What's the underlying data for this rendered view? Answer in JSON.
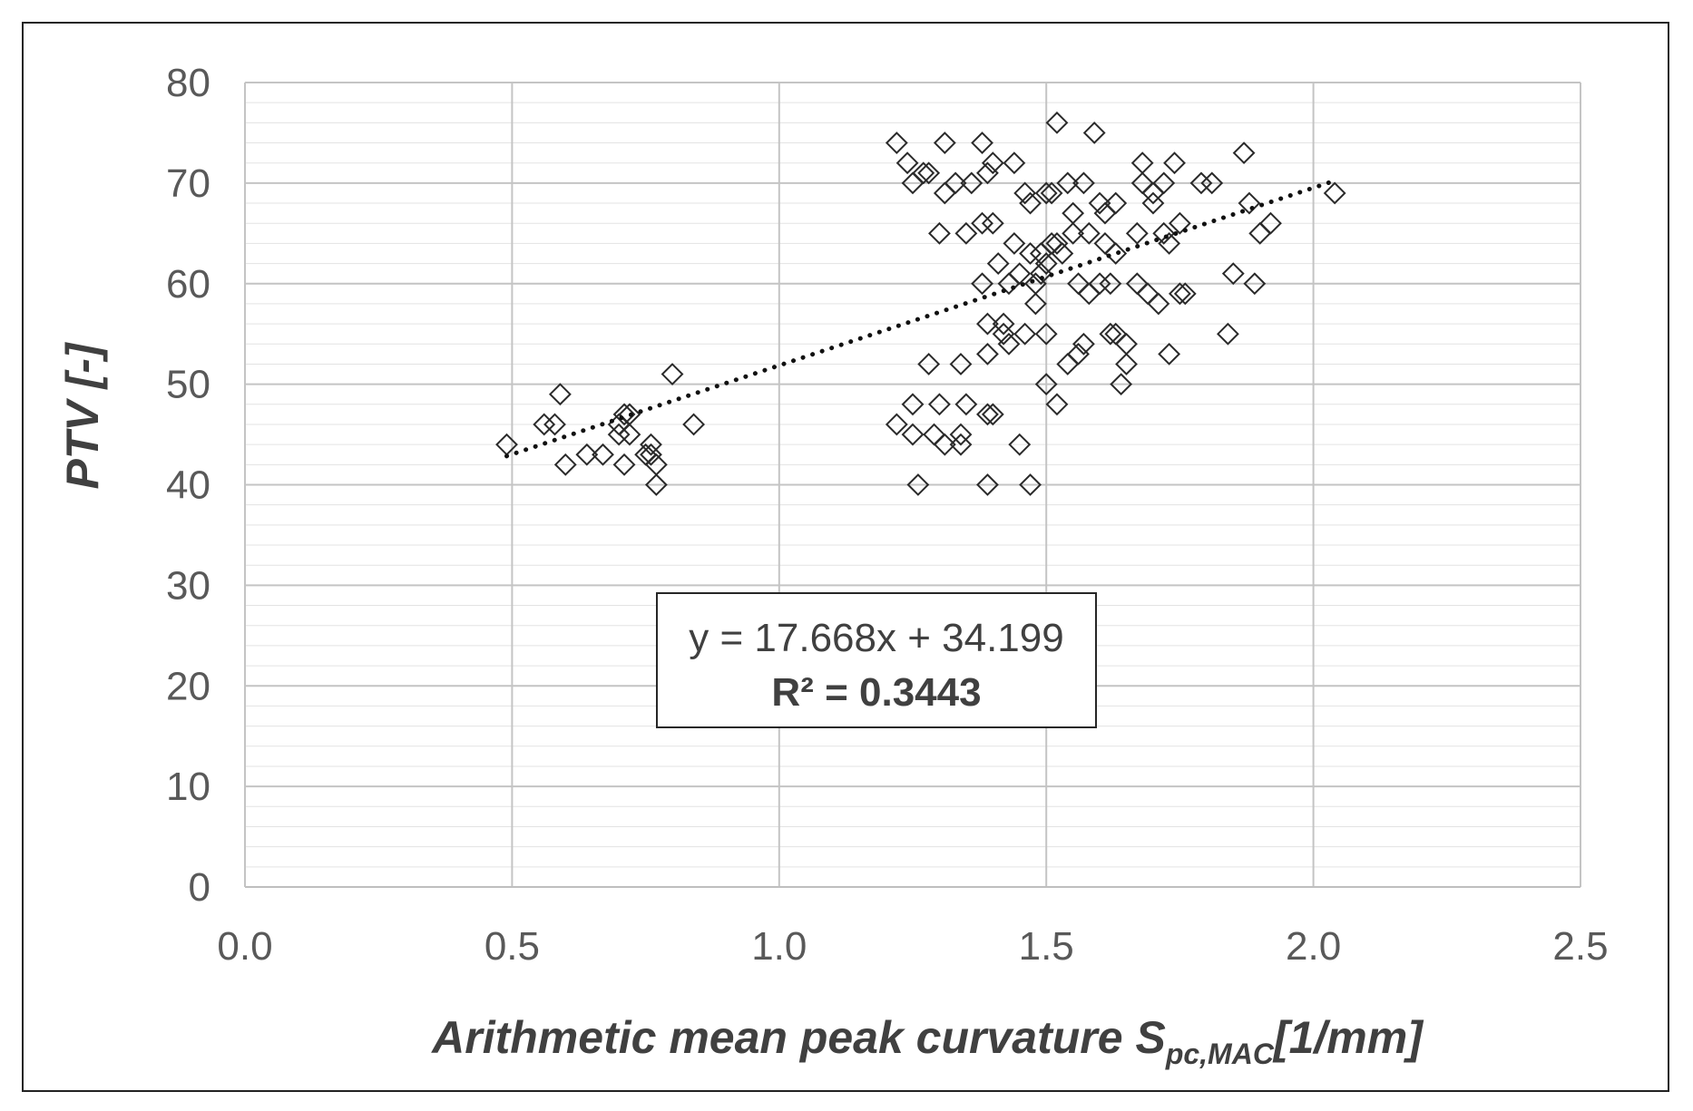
{
  "chart_data": {
    "type": "scatter",
    "xlabel": "Arithmetic mean peak curvature S",
    "xlabel_subscript": "pc,MAC",
    "xlabel_unit": "[1/mm]",
    "ylabel": "PTV [-]",
    "xlim": [
      0.0,
      2.5
    ],
    "ylim": [
      0,
      80
    ],
    "x_ticks": [
      "0.0",
      "0.5",
      "1.0",
      "1.5",
      "2.0",
      "2.5"
    ],
    "y_ticks": [
      "0",
      "10",
      "20",
      "30",
      "40",
      "50",
      "60",
      "70",
      "80"
    ],
    "grid": "major and minor",
    "marker": "hollow-diamond",
    "trendline": {
      "type": "linear",
      "slope": 17.668,
      "intercept": 34.199,
      "x_range": [
        0.49,
        2.03
      ],
      "style": "dotted",
      "equation_label": "y = 17.668x + 34.199",
      "r2_label": "R² = 0.3443"
    },
    "series": [
      {
        "points": [
          [
            0.49,
            44
          ],
          [
            0.56,
            46
          ],
          [
            0.58,
            46
          ],
          [
            0.59,
            49
          ],
          [
            0.6,
            42
          ],
          [
            0.64,
            43
          ],
          [
            0.67,
            43
          ],
          [
            0.7,
            45
          ],
          [
            0.7,
            46
          ],
          [
            0.71,
            47
          ],
          [
            0.71,
            42
          ],
          [
            0.72,
            45
          ],
          [
            0.72,
            47
          ],
          [
            0.75,
            43
          ],
          [
            0.76,
            44
          ],
          [
            0.76,
            43
          ],
          [
            0.77,
            40
          ],
          [
            0.77,
            42
          ],
          [
            0.8,
            51
          ],
          [
            0.84,
            46
          ],
          [
            1.22,
            74
          ],
          [
            1.24,
            72
          ],
          [
            1.25,
            70
          ],
          [
            1.27,
            71
          ],
          [
            1.28,
            71
          ],
          [
            1.22,
            46
          ],
          [
            1.25,
            48
          ],
          [
            1.25,
            45
          ],
          [
            1.26,
            40
          ],
          [
            1.28,
            52
          ],
          [
            1.29,
            45
          ],
          [
            1.3,
            48
          ],
          [
            1.31,
            44
          ],
          [
            1.3,
            65
          ],
          [
            1.31,
            69
          ],
          [
            1.31,
            74
          ],
          [
            1.33,
            70
          ],
          [
            1.34,
            52
          ],
          [
            1.34,
            45
          ],
          [
            1.34,
            44
          ],
          [
            1.35,
            48
          ],
          [
            1.35,
            65
          ],
          [
            1.36,
            70
          ],
          [
            1.38,
            60
          ],
          [
            1.38,
            74
          ],
          [
            1.38,
            66
          ],
          [
            1.39,
            71
          ],
          [
            1.39,
            56
          ],
          [
            1.39,
            53
          ],
          [
            1.39,
            47
          ],
          [
            1.39,
            40
          ],
          [
            1.4,
            66
          ],
          [
            1.4,
            72
          ],
          [
            1.4,
            47
          ],
          [
            1.41,
            62
          ],
          [
            1.42,
            55
          ],
          [
            1.42,
            56
          ],
          [
            1.43,
            60
          ],
          [
            1.43,
            54
          ],
          [
            1.44,
            64
          ],
          [
            1.44,
            72
          ],
          [
            1.45,
            61
          ],
          [
            1.45,
            44
          ],
          [
            1.46,
            69
          ],
          [
            1.46,
            55
          ],
          [
            1.47,
            63
          ],
          [
            1.47,
            68
          ],
          [
            1.47,
            40
          ],
          [
            1.48,
            58
          ],
          [
            1.48,
            60
          ],
          [
            1.49,
            61
          ],
          [
            1.49,
            63
          ],
          [
            1.5,
            69
          ],
          [
            1.5,
            62
          ],
          [
            1.5,
            50
          ],
          [
            1.5,
            55
          ],
          [
            1.51,
            64
          ],
          [
            1.51,
            69
          ],
          [
            1.52,
            76
          ],
          [
            1.52,
            64
          ],
          [
            1.52,
            48
          ],
          [
            1.53,
            63
          ],
          [
            1.54,
            70
          ],
          [
            1.54,
            52
          ],
          [
            1.55,
            65
          ],
          [
            1.55,
            67
          ],
          [
            1.56,
            60
          ],
          [
            1.56,
            53
          ],
          [
            1.57,
            70
          ],
          [
            1.57,
            54
          ],
          [
            1.58,
            65
          ],
          [
            1.58,
            59
          ],
          [
            1.59,
            75
          ],
          [
            1.6,
            60
          ],
          [
            1.6,
            68
          ],
          [
            1.61,
            64
          ],
          [
            1.61,
            67
          ],
          [
            1.62,
            60
          ],
          [
            1.62,
            55
          ],
          [
            1.63,
            68
          ],
          [
            1.63,
            63
          ],
          [
            1.63,
            55
          ],
          [
            1.64,
            50
          ],
          [
            1.65,
            52
          ],
          [
            1.65,
            54
          ],
          [
            1.67,
            65
          ],
          [
            1.67,
            60
          ],
          [
            1.68,
            72
          ],
          [
            1.68,
            70
          ],
          [
            1.69,
            59
          ],
          [
            1.7,
            69
          ],
          [
            1.7,
            68
          ],
          [
            1.71,
            58
          ],
          [
            1.72,
            70
          ],
          [
            1.72,
            65
          ],
          [
            1.73,
            64
          ],
          [
            1.73,
            53
          ],
          [
            1.74,
            72
          ],
          [
            1.75,
            66
          ],
          [
            1.75,
            59
          ],
          [
            1.76,
            59
          ],
          [
            1.79,
            70
          ],
          [
            1.81,
            70
          ],
          [
            1.84,
            55
          ],
          [
            1.85,
            61
          ],
          [
            1.87,
            73
          ],
          [
            1.88,
            68
          ],
          [
            1.89,
            60
          ],
          [
            1.9,
            65
          ],
          [
            1.92,
            66
          ],
          [
            2.04,
            69
          ]
        ]
      }
    ]
  }
}
